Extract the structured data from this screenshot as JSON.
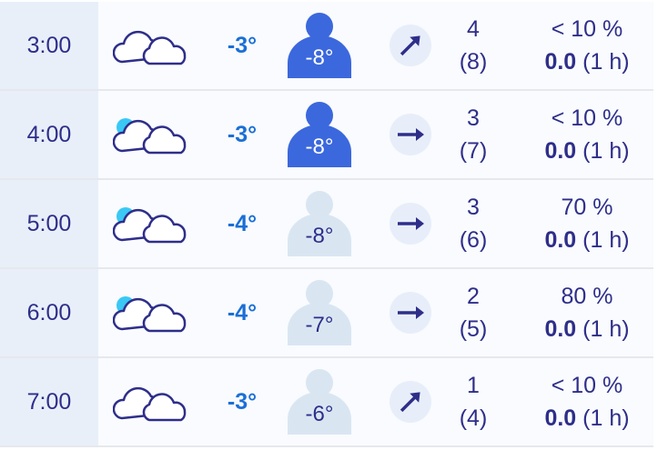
{
  "colors": {
    "temp": "#1a6fd6",
    "feels_active": "#3b68dd",
    "feels_inactive": "#d9e6f2",
    "sun": "#3ac8f5",
    "text": "#2e2e8a"
  },
  "rows": [
    {
      "time": "3:00",
      "icon": "cloudy-icon",
      "temp": "-3°",
      "feels": "-8°",
      "feels_active": true,
      "wind_dir": "north-east",
      "wind": "4",
      "gust": "(8)",
      "prob": "< 10 %",
      "precip": "0.0",
      "precip_period": "(1 h)"
    },
    {
      "time": "4:00",
      "icon": "partly-cloudy-icon",
      "temp": "-3°",
      "feels": "-8°",
      "feels_active": true,
      "wind_dir": "east",
      "wind": "3",
      "gust": "(7)",
      "prob": "< 10 %",
      "precip": "0.0",
      "precip_period": "(1 h)"
    },
    {
      "time": "5:00",
      "icon": "partly-cloudy-icon",
      "temp": "-4°",
      "feels": "-8°",
      "feels_active": false,
      "wind_dir": "east",
      "wind": "3",
      "gust": "(6)",
      "prob": "70 %",
      "precip": "0.0",
      "precip_period": "(1 h)"
    },
    {
      "time": "6:00",
      "icon": "partly-cloudy-icon",
      "temp": "-4°",
      "feels": "-7°",
      "feels_active": false,
      "wind_dir": "east",
      "wind": "2",
      "gust": "(5)",
      "prob": "80 %",
      "precip": "0.0",
      "precip_period": "(1 h)"
    },
    {
      "time": "7:00",
      "icon": "cloudy-icon",
      "temp": "-3°",
      "feels": "-6°",
      "feels_active": false,
      "wind_dir": "north-east",
      "wind": "1",
      "gust": "(4)",
      "prob": "< 10 %",
      "precip": "0.0",
      "precip_period": "(1 h)"
    }
  ]
}
